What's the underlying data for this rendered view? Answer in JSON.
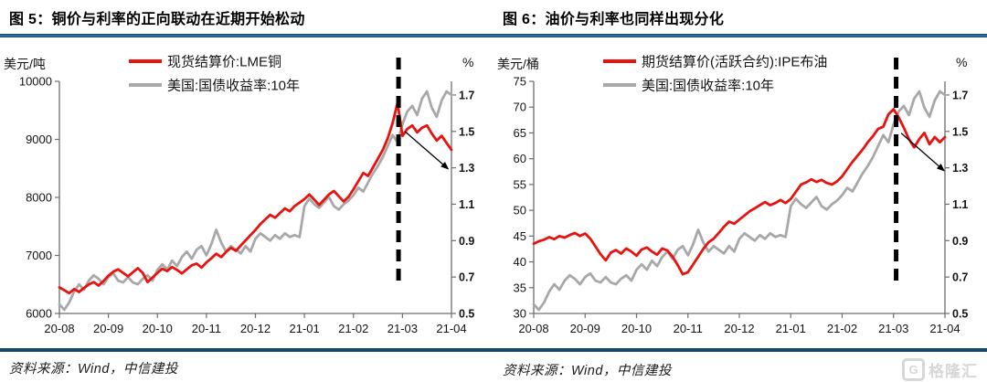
{
  "footer": {
    "source_text": "资料来源：Wind，中信建投",
    "logo_letter": "G",
    "logo_text": "格隆汇"
  },
  "charts": [
    {
      "title": "图 5：铜价与利率的正向联动在近期开始松动",
      "chart_data": {
        "type": "line",
        "x_tick_labels": [
          "20-08",
          "20-09",
          "20-10",
          "20-11",
          "20-12",
          "21-01",
          "21-02",
          "21-03",
          "21-04"
        ],
        "left_axis": {
          "label": "美元/吨",
          "range": [
            6000,
            10000
          ],
          "ticks": [
            6000,
            7000,
            8000,
            9000,
            10000
          ]
        },
        "right_axis": {
          "label": "%",
          "range": [
            0.5,
            1.775
          ],
          "ticks": [
            0.5,
            0.7,
            0.9,
            1.1,
            1.3,
            1.5,
            1.7
          ]
        },
        "legend": [
          {
            "label": "现货结算价:LME铜",
            "color": "#e8120f"
          },
          {
            "label": "美国:国债收益率:10年",
            "color": "#a8a8a8"
          }
        ],
        "series": [
          {
            "name": "美国:国债收益率:10年",
            "axis": "right",
            "color": "#a8a8a8",
            "values": [
              0.55,
              0.52,
              0.56,
              0.62,
              0.66,
              0.63,
              0.68,
              0.71,
              0.69,
              0.66,
              0.7,
              0.72,
              0.68,
              0.67,
              0.7,
              0.67,
              0.66,
              0.69,
              0.71,
              0.68,
              0.74,
              0.77,
              0.74,
              0.79,
              0.76,
              0.81,
              0.84,
              0.8,
              0.85,
              0.87,
              0.82,
              0.88,
              0.96,
              0.89,
              0.84,
              0.87,
              0.85,
              0.83,
              0.87,
              0.84,
              0.91,
              0.94,
              0.92,
              0.9,
              0.93,
              0.91,
              0.94,
              0.92,
              0.93,
              0.92,
              1.09,
              1.13,
              1.1,
              1.08,
              1.11,
              1.14,
              1.09,
              1.07,
              1.1,
              1.12,
              1.15,
              1.19,
              1.17,
              1.22,
              1.27,
              1.31,
              1.36,
              1.42,
              1.48,
              1.44,
              1.54,
              1.61,
              1.64,
              1.59,
              1.68,
              1.72,
              1.63,
              1.58,
              1.67,
              1.72,
              1.7
            ]
          },
          {
            "name": "现货结算价:LME铜",
            "axis": "left",
            "color": "#e8120f",
            "values": [
              6450,
              6400,
              6350,
              6420,
              6370,
              6440,
              6500,
              6540,
              6480,
              6560,
              6650,
              6720,
              6760,
              6700,
              6640,
              6710,
              6780,
              6700,
              6540,
              6620,
              6700,
              6770,
              6730,
              6800,
              6750,
              6690,
              6760,
              6830,
              6860,
              6790,
              6880,
              6950,
              7030,
              6970,
              7060,
              7130,
              7080,
              7170,
              7260,
              7350,
              7440,
              7540,
              7620,
              7700,
              7650,
              7730,
              7810,
              7760,
              7850,
              7910,
              7970,
              8050,
              7960,
              7870,
              7960,
              8050,
              8110,
              8020,
              7930,
              8010,
              8140,
              8280,
              8420,
              8370,
              8520,
              8670,
              8820,
              9020,
              9280,
              9630,
              9060,
              9180,
              9240,
              9120,
              9200,
              9240,
              9100,
              8980,
              9060,
              8940,
              8820
            ]
          }
        ],
        "annotations": {
          "dashed_vline_month": 6.92,
          "arrow": {
            "value_axis": "right",
            "from": [
              7.05,
              1.5
            ],
            "to": [
              7.95,
              1.29
            ]
          }
        }
      }
    },
    {
      "title": "图 6：油价与利率也同样出现分化",
      "chart_data": {
        "type": "line",
        "x_tick_labels": [
          "20-08",
          "20-09",
          "20-10",
          "20-11",
          "20-12",
          "21-01",
          "21-02",
          "21-03",
          "21-04"
        ],
        "left_axis": {
          "label": "美元/桶",
          "range": [
            30,
            75
          ],
          "ticks": [
            30,
            35,
            40,
            45,
            50,
            55,
            60,
            65,
            70,
            75
          ]
        },
        "right_axis": {
          "label": "%",
          "range": [
            0.5,
            1.775
          ],
          "ticks": [
            0.5,
            0.7,
            0.9,
            1.1,
            1.3,
            1.5,
            1.7
          ]
        },
        "legend": [
          {
            "label": "期货结算价(活跃合约):IPE布油",
            "color": "#e8120f"
          },
          {
            "label": "美国:国债收益率:10年",
            "color": "#a8a8a8"
          }
        ],
        "series": [
          {
            "name": "美国:国债收益率:10年",
            "axis": "right",
            "color": "#a8a8a8",
            "values": [
              0.55,
              0.52,
              0.56,
              0.62,
              0.66,
              0.63,
              0.68,
              0.71,
              0.69,
              0.66,
              0.7,
              0.72,
              0.68,
              0.67,
              0.7,
              0.67,
              0.66,
              0.69,
              0.71,
              0.68,
              0.74,
              0.77,
              0.74,
              0.79,
              0.76,
              0.81,
              0.84,
              0.8,
              0.85,
              0.87,
              0.82,
              0.88,
              0.96,
              0.89,
              0.84,
              0.87,
              0.85,
              0.83,
              0.87,
              0.84,
              0.91,
              0.94,
              0.92,
              0.9,
              0.93,
              0.91,
              0.94,
              0.92,
              0.93,
              0.92,
              1.09,
              1.13,
              1.1,
              1.08,
              1.11,
              1.14,
              1.09,
              1.07,
              1.1,
              1.12,
              1.15,
              1.19,
              1.17,
              1.22,
              1.27,
              1.31,
              1.36,
              1.42,
              1.48,
              1.44,
              1.54,
              1.61,
              1.64,
              1.59,
              1.68,
              1.72,
              1.63,
              1.58,
              1.67,
              1.72,
              1.7
            ]
          },
          {
            "name": "期货结算价(活跃合约):IPE布油",
            "axis": "left",
            "color": "#e8120f",
            "values": [
              43.5,
              44.0,
              44.3,
              44.8,
              44.4,
              45.0,
              44.7,
              45.2,
              45.6,
              45.0,
              45.5,
              44.5,
              43.0,
              41.5,
              40.3,
              41.8,
              42.3,
              41.6,
              42.6,
              42.0,
              41.2,
              42.4,
              42.8,
              42.0,
              41.4,
              42.6,
              42.2,
              41.0,
              39.4,
              37.6,
              38.0,
              39.5,
              41.0,
              42.5,
              43.8,
              44.5,
              45.6,
              46.8,
              47.8,
              47.4,
              48.2,
              49.0,
              49.8,
              50.4,
              51.0,
              51.6,
              51.0,
              51.4,
              52.0,
              51.4,
              52.2,
              53.6,
              55.0,
              55.4,
              56.0,
              55.5,
              55.9,
              55.3,
              55.0,
              55.6,
              56.6,
              58.0,
              59.4,
              60.6,
              61.8,
              63.2,
              64.4,
              65.8,
              66.2,
              68.6,
              69.6,
              68.0,
              66.0,
              63.8,
              62.2,
              63.8,
              65.0,
              62.8,
              64.2,
              63.2,
              64.2
            ]
          }
        ],
        "annotations": {
          "dashed_vline_month": 7.05,
          "arrow": {
            "value_axis": "right",
            "from": [
              7.15,
              1.49
            ],
            "to": [
              8.0,
              1.28
            ]
          }
        }
      }
    }
  ]
}
